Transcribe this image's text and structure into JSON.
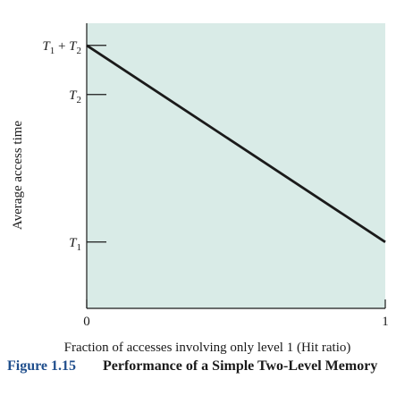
{
  "chart_data": {
    "type": "line",
    "title": "",
    "xlabel": "Fraction of accesses involving only level 1 (Hit ratio)",
    "ylabel": "Average access time",
    "x_ticks": [
      {
        "value": 0,
        "label": "0"
      },
      {
        "value": 1,
        "label": "1"
      }
    ],
    "y_ticks": [
      {
        "value": 1,
        "label": "T1",
        "base": "T",
        "sub": "1"
      },
      {
        "value": 4,
        "label": "T2",
        "base": "T",
        "sub": "2"
      },
      {
        "value": 5,
        "label": "T1 + T2",
        "base": "T",
        "sub": "1",
        "plus": "+",
        "base2": "T",
        "sub2": "2"
      }
    ],
    "xlim": [
      0,
      1
    ],
    "ylim": [
      -0.35,
      5.45
    ],
    "series": [
      {
        "x": [
          0,
          1
        ],
        "y": [
          5,
          1
        ]
      }
    ],
    "grid": false,
    "colors": {
      "plot_background": "#d9ebe7",
      "line": "#1a1a1a",
      "axis": "#1a1a1a"
    }
  },
  "caption": {
    "number": "Figure 1.15",
    "title": "Performance of a Simple Two-Level Memory",
    "number_color": "#1f4e8c"
  }
}
